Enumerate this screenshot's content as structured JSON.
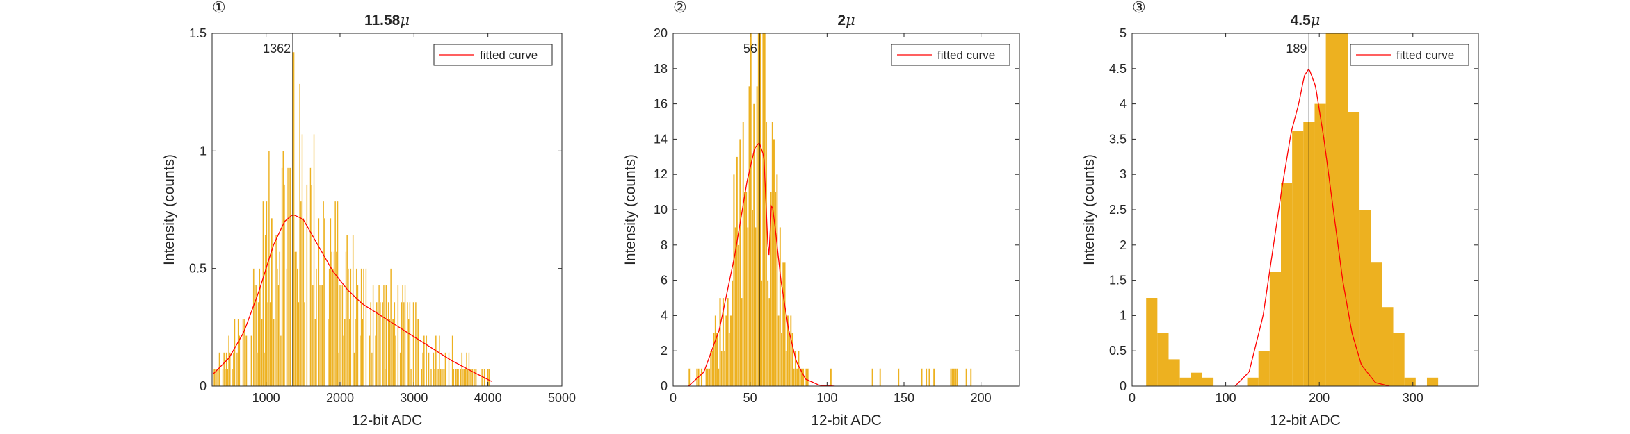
{
  "chart_data": [
    {
      "type": "bar",
      "panel_label": "①",
      "title": "11.58",
      "title_symbol": "μ",
      "xlabel": "12-bit ADC",
      "ylabel": "Intensity (counts)",
      "xlim": [
        270,
        5000
      ],
      "ylim": [
        0,
        1.5
      ],
      "xticks": [
        1000,
        2000,
        3000,
        4000,
        5000
      ],
      "yticks": [
        0,
        0.5,
        1,
        1.5
      ],
      "xtick_labels": [
        "1000",
        "2000",
        "3000",
        "4000",
        "5000"
      ],
      "ytick_labels": [
        "0",
        "0.5",
        "1",
        "1.5"
      ],
      "hist_range": [
        280,
        4080
      ],
      "bin_width": 16,
      "peak_x": 1362,
      "peak_label": "1362",
      "legend": [
        "fitted curve"
      ],
      "legend_position": "top-right",
      "bar_color": "#EDB120",
      "curve_color": "#FF0000",
      "curve_points": [
        [
          280,
          0.05
        ],
        [
          500,
          0.12
        ],
        [
          700,
          0.23
        ],
        [
          900,
          0.4
        ],
        [
          1100,
          0.6
        ],
        [
          1250,
          0.7
        ],
        [
          1362,
          0.73
        ],
        [
          1500,
          0.71
        ],
        [
          1700,
          0.6
        ],
        [
          1900,
          0.49
        ],
        [
          2100,
          0.41
        ],
        [
          2300,
          0.35
        ],
        [
          2600,
          0.29
        ],
        [
          2900,
          0.23
        ],
        [
          3200,
          0.17
        ],
        [
          3500,
          0.11
        ],
        [
          3800,
          0.06
        ],
        [
          4050,
          0.02
        ]
      ]
    },
    {
      "type": "bar",
      "panel_label": "②",
      "title": "2",
      "title_symbol": "μ",
      "xlabel": "12-bit ADC",
      "ylabel": "Intensity (counts)",
      "xlim": [
        0,
        225
      ],
      "ylim": [
        0,
        20
      ],
      "xticks": [
        0,
        50,
        100,
        150,
        200
      ],
      "yticks": [
        0,
        2,
        4,
        6,
        8,
        10,
        12,
        14,
        16,
        18,
        20
      ],
      "xtick_labels": [
        "0",
        "50",
        "100",
        "150",
        "200"
      ],
      "ytick_labels": [
        "0",
        "2",
        "4",
        "6",
        "8",
        "10",
        "12",
        "14",
        "16",
        "18",
        "20"
      ],
      "hist_range": [
        10,
        200
      ],
      "bin_width": 1,
      "peak_x": 56,
      "peak_label": "56",
      "legend": [
        "fitted curve"
      ],
      "legend_position": "top-right",
      "bar_color": "#EDB120",
      "curve_color": "#FF0000",
      "curve_points": [
        [
          10,
          0
        ],
        [
          20,
          0.8
        ],
        [
          30,
          3.2
        ],
        [
          40,
          7.4
        ],
        [
          48,
          11.6
        ],
        [
          53,
          13.5
        ],
        [
          56,
          13.8
        ],
        [
          59,
          13.0
        ],
        [
          62,
          7.0
        ],
        [
          64,
          10.5
        ],
        [
          66,
          9.2
        ],
        [
          70,
          6.0
        ],
        [
          75,
          3.2
        ],
        [
          80,
          1.4
        ],
        [
          86,
          0.4
        ],
        [
          95,
          0.05
        ],
        [
          105,
          0
        ]
      ]
    },
    {
      "type": "bar",
      "panel_label": "③",
      "title": "4.5",
      "title_symbol": "μ",
      "xlabel": "12-bit ADC",
      "ylabel": "Intensity (counts)",
      "xlim": [
        0,
        370
      ],
      "ylim": [
        0,
        5
      ],
      "xticks": [
        0,
        100,
        200,
        300
      ],
      "yticks": [
        0,
        0.5,
        1,
        1.5,
        2,
        2.5,
        3,
        3.5,
        4,
        4.5,
        5
      ],
      "xtick_labels": [
        "0",
        "100",
        "200",
        "300"
      ],
      "ytick_labels": [
        "0",
        "0.5",
        "1",
        "1.5",
        "2",
        "2.5",
        "3",
        "3.5",
        "4",
        "4.5",
        "5"
      ],
      "bin_width": 12,
      "bin_edges_start": 15,
      "values": [
        1.25,
        0.75,
        0.38,
        0.12,
        0.19,
        0.12,
        0,
        0,
        0,
        0.12,
        0.5,
        1.62,
        2.88,
        3.62,
        3.75,
        4.0,
        5.12,
        5.0,
        3.88,
        2.5,
        1.75,
        1.12,
        0.75,
        0.12,
        0,
        0.12
      ],
      "peak_x": 189,
      "peak_label": "189",
      "legend": [
        "fitted curve"
      ],
      "legend_position": "top-right",
      "bar_color": "#EDB120",
      "curve_color": "#FF0000",
      "curve_points": [
        [
          110,
          0
        ],
        [
          125,
          0.2
        ],
        [
          140,
          1.0
        ],
        [
          150,
          1.9
        ],
        [
          160,
          2.8
        ],
        [
          170,
          3.6
        ],
        [
          178,
          4.0
        ],
        [
          184,
          4.4
        ],
        [
          189,
          4.5
        ],
        [
          196,
          4.25
        ],
        [
          205,
          3.5
        ],
        [
          215,
          2.5
        ],
        [
          225,
          1.5
        ],
        [
          235,
          0.75
        ],
        [
          245,
          0.3
        ],
        [
          260,
          0.05
        ],
        [
          275,
          0
        ]
      ]
    }
  ]
}
